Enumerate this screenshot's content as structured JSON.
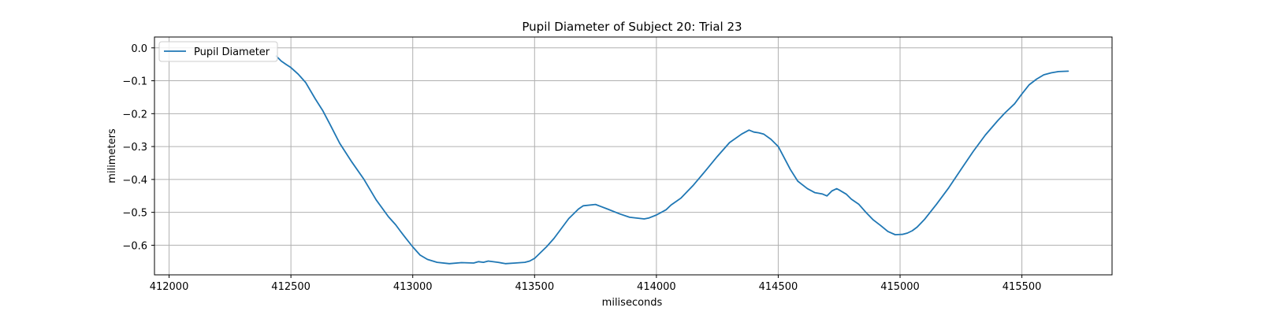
{
  "chart_data": {
    "type": "line",
    "title": "Pupil Diameter of Subject 20: Trial 23",
    "xlabel": "miliseconds",
    "ylabel": "milimeters",
    "xlim": [
      411940,
      415870
    ],
    "ylim": [
      -0.69,
      0.033
    ],
    "xticks": [
      412000,
      412500,
      413000,
      413500,
      414000,
      414500,
      415000,
      415500
    ],
    "yticks": [
      0.0,
      -0.1,
      -0.2,
      -0.3,
      -0.4,
      -0.5,
      -0.6
    ],
    "xtick_labels": [
      "412000",
      "412500",
      "413000",
      "413500",
      "414000",
      "414500",
      "415000",
      "415500"
    ],
    "ytick_labels": [
      "0.0",
      "−0.1",
      "−0.2",
      "−0.3",
      "−0.4",
      "−0.5",
      "−0.6"
    ],
    "grid": true,
    "legend": {
      "position": "upper-left",
      "entries": [
        "Pupil Diameter"
      ]
    },
    "series": [
      {
        "name": "Pupil Diameter",
        "color": "#1f77b4",
        "x": [
          412440,
          412460,
          412480,
          412500,
          412530,
          412560,
          412600,
          412630,
          412660,
          412700,
          412750,
          412800,
          412850,
          412900,
          412930,
          412950,
          412970,
          413000,
          413030,
          413060,
          413100,
          413150,
          413200,
          413250,
          413270,
          413290,
          413310,
          413350,
          413380,
          413420,
          413460,
          413480,
          413500,
          413550,
          413580,
          413610,
          413640,
          413680,
          413700,
          413750,
          413800,
          413850,
          413890,
          413950,
          413970,
          414000,
          414040,
          414060,
          414100,
          414150,
          414200,
          414250,
          414300,
          414350,
          414380,
          414400,
          414420,
          414440,
          414470,
          414500,
          414550,
          414580,
          414620,
          414650,
          414680,
          414700,
          414720,
          414740,
          414750,
          414780,
          414800,
          414830,
          414860,
          414890,
          414920,
          414950,
          414980,
          415010,
          415030,
          415050,
          415070,
          415100,
          415150,
          415200,
          415250,
          415300,
          415350,
          415400,
          415430,
          415470,
          415500,
          415530,
          415560,
          415590,
          415620,
          415650,
          415690
        ],
        "y": [
          -0.025,
          -0.04,
          -0.05,
          -0.06,
          -0.08,
          -0.105,
          -0.155,
          -0.19,
          -0.232,
          -0.29,
          -0.347,
          -0.4,
          -0.462,
          -0.513,
          -0.538,
          -0.558,
          -0.577,
          -0.605,
          -0.63,
          -0.643,
          -0.652,
          -0.656,
          -0.653,
          -0.654,
          -0.65,
          -0.652,
          -0.648,
          -0.652,
          -0.656,
          -0.654,
          -0.652,
          -0.648,
          -0.64,
          -0.604,
          -0.579,
          -0.549,
          -0.519,
          -0.49,
          -0.48,
          -0.476,
          -0.49,
          -0.505,
          -0.515,
          -0.52,
          -0.517,
          -0.508,
          -0.492,
          -0.478,
          -0.457,
          -0.419,
          -0.375,
          -0.33,
          -0.288,
          -0.262,
          -0.25,
          -0.256,
          -0.258,
          -0.262,
          -0.278,
          -0.3,
          -0.37,
          -0.405,
          -0.428,
          -0.44,
          -0.444,
          -0.45,
          -0.435,
          -0.428,
          -0.432,
          -0.445,
          -0.46,
          -0.475,
          -0.5,
          -0.523,
          -0.54,
          -0.558,
          -0.568,
          -0.567,
          -0.563,
          -0.556,
          -0.545,
          -0.522,
          -0.475,
          -0.425,
          -0.37,
          -0.315,
          -0.265,
          -0.222,
          -0.198,
          -0.17,
          -0.14,
          -0.112,
          -0.095,
          -0.082,
          -0.076,
          -0.072,
          -0.071
        ]
      }
    ]
  }
}
